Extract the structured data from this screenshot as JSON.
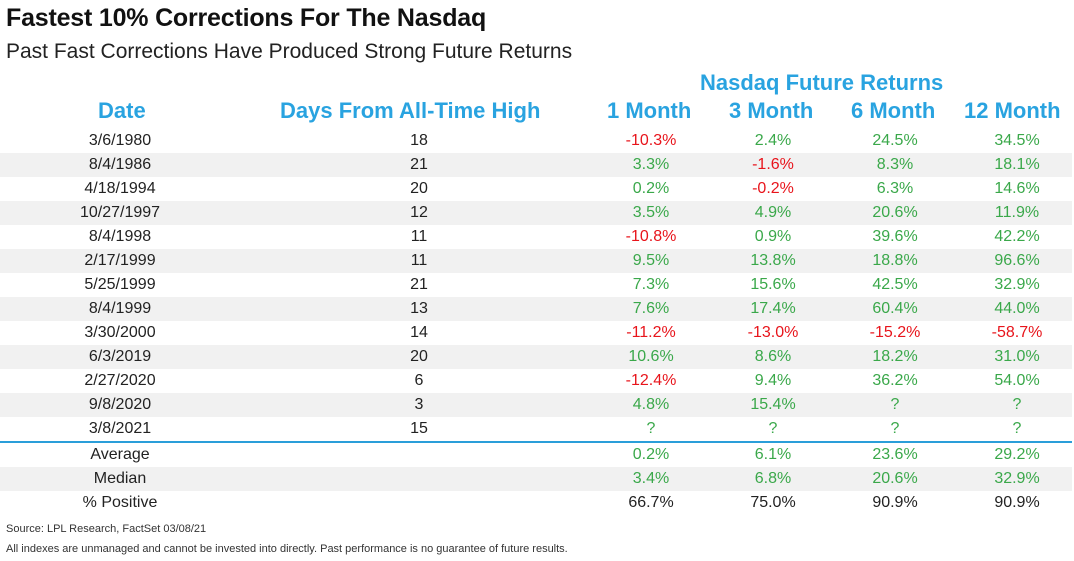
{
  "chart_data": {
    "type": "table",
    "title": "Fastest 10% Corrections For The Nasdaq",
    "subtitle": "Past Fast Corrections Have Produced Strong Future Returns",
    "group_header": "Nasdaq Future Returns",
    "columns": [
      "Date",
      "Days From All-Time High",
      "1 Month",
      "3 Month",
      "6 Month",
      "12 Month"
    ],
    "rows": [
      {
        "date": "3/6/1980",
        "days": "18",
        "m1": "-10.3%",
        "m3": "2.4%",
        "m6": "24.5%",
        "m12": "34.5%"
      },
      {
        "date": "8/4/1986",
        "days": "21",
        "m1": "3.3%",
        "m3": "-1.6%",
        "m6": "8.3%",
        "m12": "18.1%"
      },
      {
        "date": "4/18/1994",
        "days": "20",
        "m1": "0.2%",
        "m3": "-0.2%",
        "m6": "6.3%",
        "m12": "14.6%"
      },
      {
        "date": "10/27/1997",
        "days": "12",
        "m1": "3.5%",
        "m3": "4.9%",
        "m6": "20.6%",
        "m12": "11.9%"
      },
      {
        "date": "8/4/1998",
        "days": "11",
        "m1": "-10.8%",
        "m3": "0.9%",
        "m6": "39.6%",
        "m12": "42.2%"
      },
      {
        "date": "2/17/1999",
        "days": "11",
        "m1": "9.5%",
        "m3": "13.8%",
        "m6": "18.8%",
        "m12": "96.6%"
      },
      {
        "date": "5/25/1999",
        "days": "21",
        "m1": "7.3%",
        "m3": "15.6%",
        "m6": "42.5%",
        "m12": "32.9%"
      },
      {
        "date": "8/4/1999",
        "days": "13",
        "m1": "7.6%",
        "m3": "17.4%",
        "m6": "60.4%",
        "m12": "44.0%"
      },
      {
        "date": "3/30/2000",
        "days": "14",
        "m1": "-11.2%",
        "m3": "-13.0%",
        "m6": "-15.2%",
        "m12": "-58.7%"
      },
      {
        "date": "6/3/2019",
        "days": "20",
        "m1": "10.6%",
        "m3": "8.6%",
        "m6": "18.2%",
        "m12": "31.0%"
      },
      {
        "date": "2/27/2020",
        "days": "6",
        "m1": "-12.4%",
        "m3": "9.4%",
        "m6": "36.2%",
        "m12": "54.0%"
      },
      {
        "date": "9/8/2020",
        "days": "3",
        "m1": "4.8%",
        "m3": "15.4%",
        "m6": "?",
        "m12": "?"
      },
      {
        "date": "3/8/2021",
        "days": "15",
        "m1": "?",
        "m3": "?",
        "m6": "?",
        "m12": "?"
      }
    ],
    "summary": [
      {
        "label": "Average",
        "m1": "0.2%",
        "m3": "6.1%",
        "m6": "23.6%",
        "m12": "29.2%"
      },
      {
        "label": "Median",
        "m1": "3.4%",
        "m3": "6.8%",
        "m6": "20.6%",
        "m12": "32.9%"
      },
      {
        "label": "% Positive",
        "m1": "66.7%",
        "m3": "75.0%",
        "m6": "90.9%",
        "m12": "90.9%"
      }
    ]
  },
  "source": "Source: LPL Research, FactSet 03/08/21",
  "disclaimer": "All indexes are unmanaged and cannot be invested into directly. Past performance is no guarantee of future results.",
  "colors": {
    "header_blue": "#29a3e0",
    "positive_green": "#3aa84a",
    "negative_red": "#e8141b",
    "divider_blue": "#2a9ed9"
  }
}
